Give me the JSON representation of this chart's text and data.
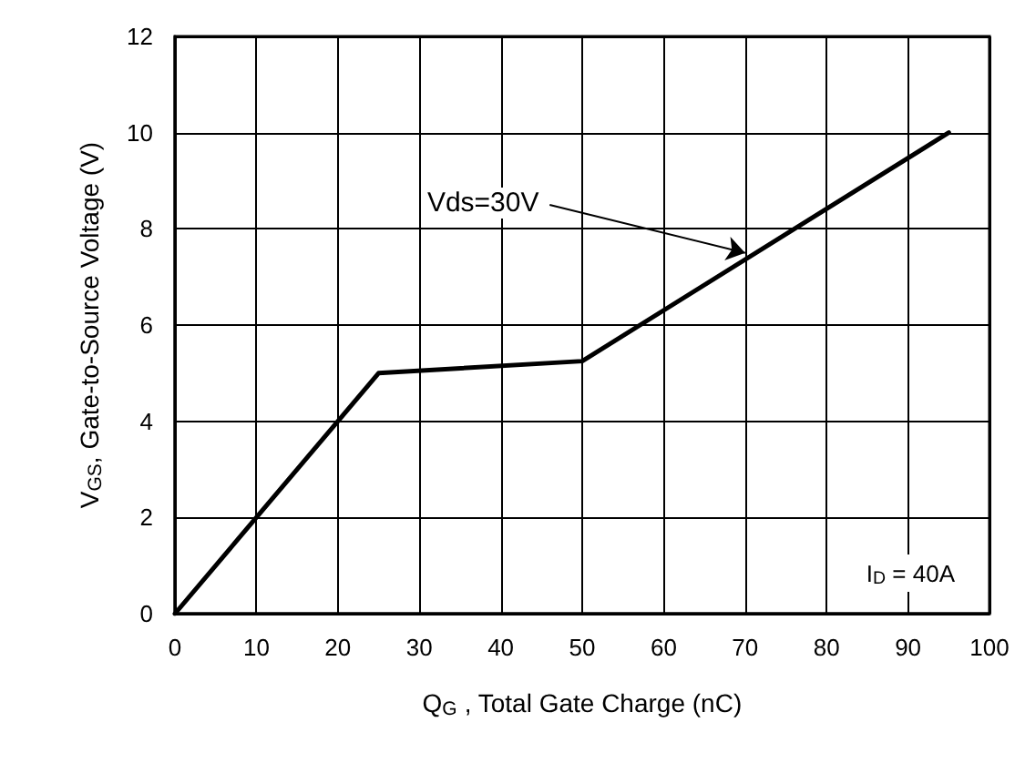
{
  "chart_data": {
    "type": "line",
    "xlabel": "Q$_{G}$ , Total Gate Charge (nC)",
    "ylabel": "V$_{GS}$, Gate-to-Source Voltage (V)",
    "x": [
      0,
      25,
      50,
      95
    ],
    "series": [
      {
        "color": "#000000",
        "values": [
          0,
          5.0,
          5.25,
          10
        ]
      }
    ],
    "xlim": [
      0,
      100
    ],
    "xticks": [
      0,
      10,
      20,
      30,
      40,
      50,
      60,
      70,
      80,
      90,
      100
    ],
    "ylim": [
      0,
      12
    ],
    "yticks": [
      0,
      2,
      4,
      6,
      8,
      10,
      12
    ],
    "grid": true,
    "marker": "none",
    "line_style": "solid",
    "annotations": [
      {
        "text": "Vds=30V",
        "x": 70,
        "y": 7.5
      },
      "I$_{D}$ = 40A"
    ]
  }
}
